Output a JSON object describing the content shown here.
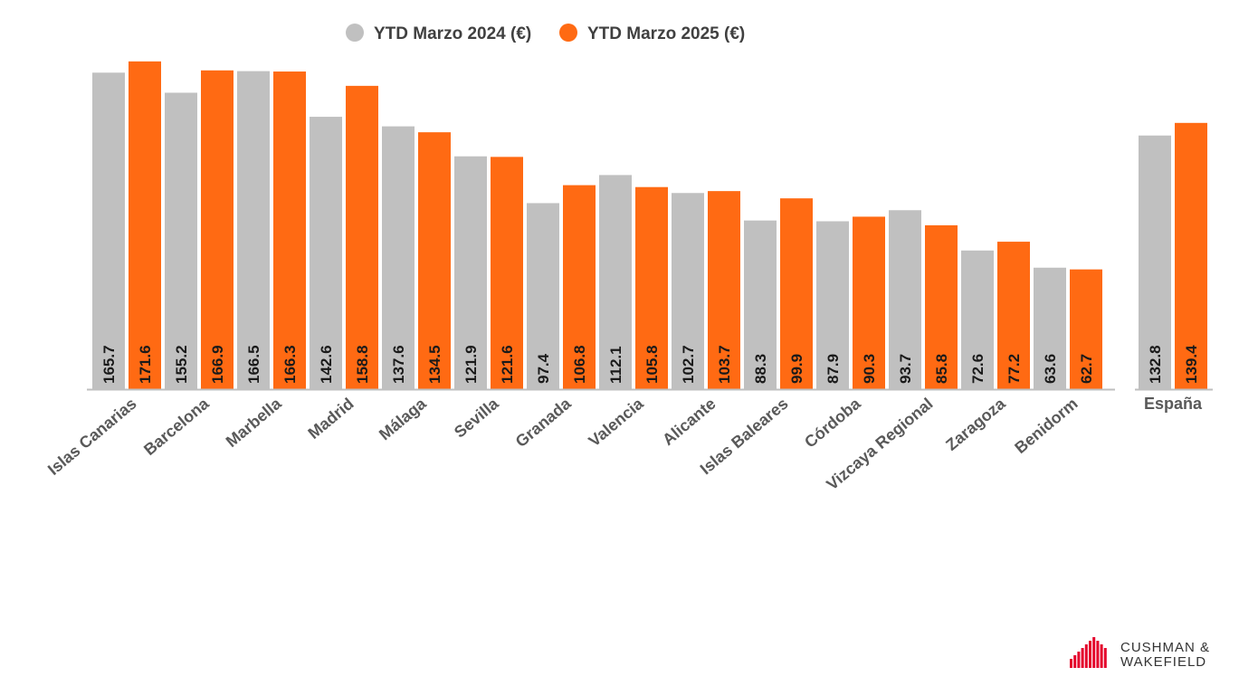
{
  "chart_data": {
    "type": "bar",
    "categories": [
      "Islas Canarias",
      "Barcelona",
      "Marbella",
      "Madrid",
      "Málaga",
      "Sevilla",
      "Granada",
      "Valencia",
      "Alicante",
      "Islas Baleares",
      "Córdoba",
      "Vizcaya Regional",
      "Zaragoza",
      "Benidorm"
    ],
    "series": [
      {
        "name": "YTD Marzo 2024 (€)",
        "color": "#c0c0c0",
        "values": [
          165.7,
          155.2,
          166.5,
          142.6,
          137.6,
          121.9,
          97.4,
          112.1,
          102.7,
          88.3,
          87.9,
          93.7,
          72.6,
          63.6
        ],
        "labels": [
          "165.7",
          "155.2",
          "166.5",
          "142.6",
          "137.6",
          "121.9",
          "97.4",
          "112.1",
          "102.7",
          "88.3",
          "87.9",
          "93.7",
          "72.6",
          "63.6"
        ]
      },
      {
        "name": "YTD Marzo 2025 (€)",
        "color": "#ff6a13",
        "values": [
          171.6,
          166.9,
          166.3,
          158.8,
          134.5,
          121.6,
          106.8,
          105.8,
          103.7,
          99.9,
          90.3,
          85.8,
          77.2,
          62.7
        ],
        "labels": [
          "171.6",
          "166.9",
          "166.3",
          "158.8",
          "134.5",
          "121.6",
          "106.8",
          "105.8",
          "103.7",
          "99.9",
          "90.3",
          "85.8",
          "77.2",
          "62.7"
        ]
      }
    ],
    "summary": {
      "category": "España",
      "values": [
        132.8,
        139.4
      ],
      "labels": [
        "132.8",
        "139.4"
      ]
    },
    "ylim": [
      0,
      172
    ],
    "legend": "top-center",
    "grid": false,
    "title": "",
    "xlabel": "",
    "ylabel": ""
  },
  "logo": {
    "line1": "CUSHMAN &",
    "line2": "WAKEFIELD",
    "color": "#e4002b"
  }
}
